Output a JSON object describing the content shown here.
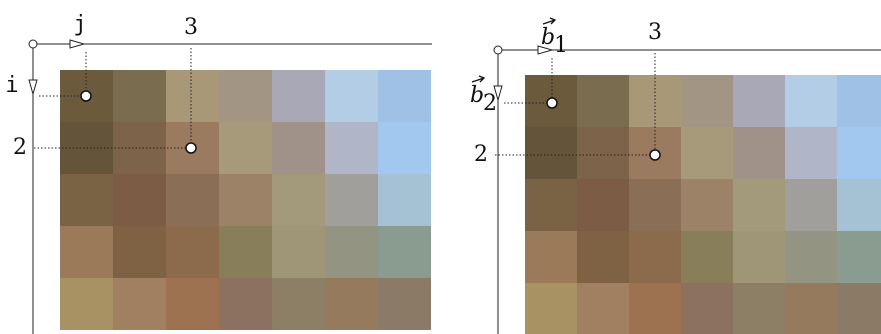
{
  "panels": [
    {
      "col_axis": {
        "text": "j"
      },
      "row_axis": {
        "text": "i"
      },
      "col_index": "3",
      "row_index": "2"
    },
    {
      "col_axis": {
        "text": "b",
        "sub": "1"
      },
      "row_axis": {
        "text": "b",
        "sub": "2"
      },
      "col_index": "3",
      "row_index": "2"
    }
  ]
}
